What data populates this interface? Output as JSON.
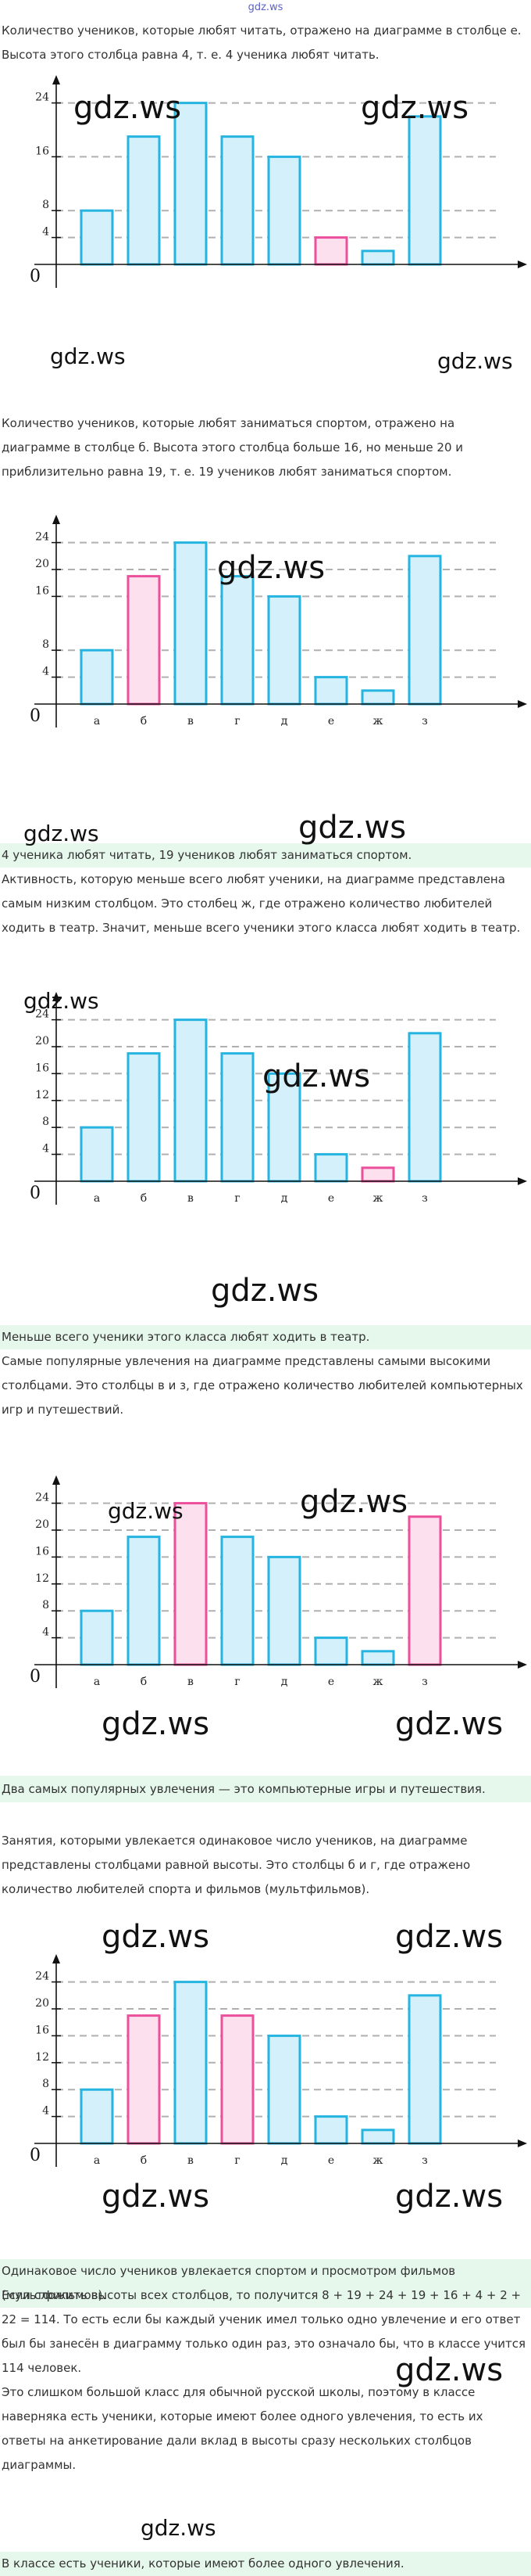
{
  "site_logo": "gdz.ws",
  "watermark": "gdz.ws",
  "origin_label": "0",
  "paragraphs": [
    "Количество учеников, которые любят читать, отражено на диаграмме в столбце е. Высота этого столбца равна 4, т. е. 4 ученика любят читать.",
    "Количество учеников, которые любят заниматься спортом, отражено на диаграмме в столбце б. Высота этого столбца больше 16, но меньше 20 и приблизительно равна 19, т. е. 19 учеников любят заниматься спортом.",
    "Активность, которую меньше всего любят ученики, на диаграмме представлена самым низким столбцом. Это столбец ж, где отражено количество любителей ходить в театр. Значит, меньше всего ученики этого класса любят ходить в театр.",
    "Самые популярные увлечения на диаграмме представлены самыми высокими столбцами. Это столбцы в и з, где отражено количество любителей компьютерных игр и путешествий.",
    "Занятия, которыми увлекается одинаковое число учеников, на диаграмме представлены столбцами равной высоты. Это столбцы б и г, где отражено количество любителей спорта и фильмов (мультфильмов).",
    "Если сложить высоты всех столбцов, то получится 8 + 19 + 24 + 19 + 16 + 4 + 2 + 22 = 114. То есть если бы каждый ученик имел только одно увлечение и его ответ был бы занесён в диаграмму только один раз, это означало бы, что в классе учится 114 человек.",
    "Это слишком большой класс для обычной русской школы, поэтому в классе наверняка есть ученики, которые имеют более одного увлечения, то есть их ответы на анкетирование дали вклад в высоты сразу нескольких столбцов диаграммы."
  ],
  "answers": [
    "4 ученика любят читать, 19 учеников любят заниматься спортом.",
    "Меньше всего ученики этого класса любят ходить в театр.",
    "Два самых популярных увлечения — это компьютерные игры и путешествия.",
    "Одинаковое число учеников увлекается спортом и просмотром фильмов (мультфильмов).",
    "В классе есть ученики, которые имеют более одного увлечения."
  ],
  "chart_data": [
    {
      "type": "bar",
      "categories": [
        "а",
        "б",
        "в",
        "г",
        "д",
        "е",
        "ж",
        "з"
      ],
      "values": [
        8,
        19,
        24,
        19,
        16,
        4,
        2,
        22
      ],
      "ylim": [
        0,
        26
      ],
      "yticks": [
        4,
        8,
        16,
        24
      ],
      "highlight": [
        5
      ],
      "show_xlabels": false,
      "grid": true
    },
    {
      "type": "bar",
      "categories": [
        "а",
        "б",
        "в",
        "г",
        "д",
        "е",
        "ж",
        "з"
      ],
      "values": [
        8,
        19,
        24,
        19,
        16,
        4,
        2,
        22
      ],
      "ylim": [
        0,
        26
      ],
      "yticks": [
        4,
        8,
        16,
        20,
        24
      ],
      "highlight": [
        1
      ],
      "show_xlabels": true,
      "grid": true
    },
    {
      "type": "bar",
      "categories": [
        "а",
        "б",
        "в",
        "г",
        "д",
        "е",
        "ж",
        "з"
      ],
      "values": [
        8,
        19,
        24,
        19,
        16,
        4,
        2,
        22
      ],
      "ylim": [
        0,
        26
      ],
      "yticks": [
        4,
        8,
        12,
        16,
        20,
        24
      ],
      "highlight": [
        6
      ],
      "show_xlabels": true,
      "grid": true
    },
    {
      "type": "bar",
      "categories": [
        "а",
        "б",
        "в",
        "г",
        "д",
        "е",
        "ж",
        "з"
      ],
      "values": [
        8,
        19,
        24,
        19,
        16,
        4,
        2,
        22
      ],
      "ylim": [
        0,
        26
      ],
      "yticks": [
        4,
        8,
        12,
        16,
        20,
        24
      ],
      "highlight": [
        2,
        7
      ],
      "show_xlabels": true,
      "grid": true
    },
    {
      "type": "bar",
      "categories": [
        "а",
        "б",
        "в",
        "г",
        "д",
        "е",
        "ж",
        "з"
      ],
      "values": [
        8,
        19,
        24,
        19,
        16,
        4,
        2,
        22
      ],
      "ylim": [
        0,
        26
      ],
      "yticks": [
        4,
        8,
        12,
        16,
        20,
        24
      ],
      "highlight": [
        1,
        3
      ],
      "show_xlabels": true,
      "grid": true
    }
  ],
  "colors": {
    "bar_fill": "#d3f0fb",
    "bar_stroke": "#26b4e0",
    "highlight_fill": "#fde0ee",
    "highlight_stroke": "#ec4f9c",
    "answer_bg": "#e6f7ec",
    "grid": "#b0b0b0"
  }
}
